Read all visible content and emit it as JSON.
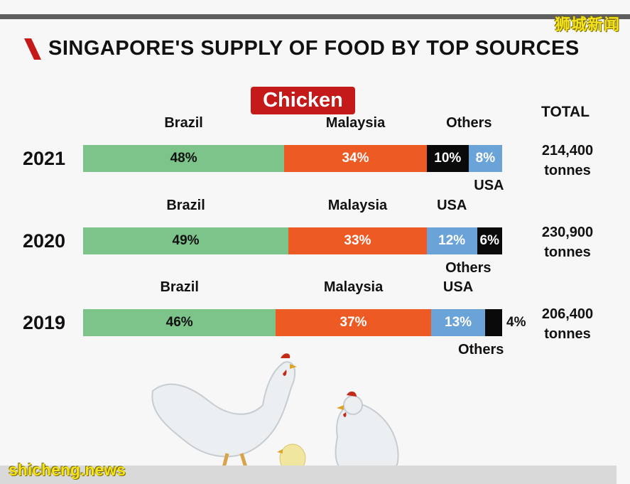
{
  "watermark_top": "狮城新闻",
  "watermark_bottom": "shicheng.news",
  "title": "SINGAPORE'S SUPPLY OF FOOD BY TOP SOURCES",
  "badge": "Chicken",
  "total_header": "TOTAL",
  "colors": {
    "Brazil": "#7dc48a",
    "Malaysia": "#ee5a24",
    "USA": "#6aa3d8",
    "Others": "#0a0a0a",
    "badge": "#c41a1a"
  },
  "chart_data": {
    "type": "bar",
    "orientation": "horizontal-stacked-100",
    "title": "SINGAPORE'S SUPPLY OF FOOD BY TOP SOURCES",
    "subtitle": "Chicken",
    "categories": [
      "2021",
      "2020",
      "2019"
    ],
    "rows": [
      {
        "year": "2021",
        "total_line1": "214,400",
        "total_line2": "tonnes",
        "segments": [
          {
            "source": "Brazil",
            "value": 48,
            "label": "48%"
          },
          {
            "source": "Malaysia",
            "value": 34,
            "label": "34%"
          },
          {
            "source": "Others",
            "value": 10,
            "label": "10%"
          },
          {
            "source": "USA",
            "value": 8,
            "label": "8%"
          }
        ]
      },
      {
        "year": "2020",
        "total_line1": "230,900",
        "total_line2": "tonnes",
        "segments": [
          {
            "source": "Brazil",
            "value": 49,
            "label": "49%"
          },
          {
            "source": "Malaysia",
            "value": 33,
            "label": "33%"
          },
          {
            "source": "USA",
            "value": 12,
            "label": "12%"
          },
          {
            "source": "Others",
            "value": 6,
            "label": "6%"
          }
        ]
      },
      {
        "year": "2019",
        "total_line1": "206,400",
        "total_line2": "tonnes",
        "segments": [
          {
            "source": "Brazil",
            "value": 46,
            "label": "46%"
          },
          {
            "source": "Malaysia",
            "value": 37,
            "label": "37%"
          },
          {
            "source": "USA",
            "value": 13,
            "label": "13%"
          },
          {
            "source": "Others",
            "value": 4,
            "label": "4%"
          }
        ]
      }
    ]
  }
}
